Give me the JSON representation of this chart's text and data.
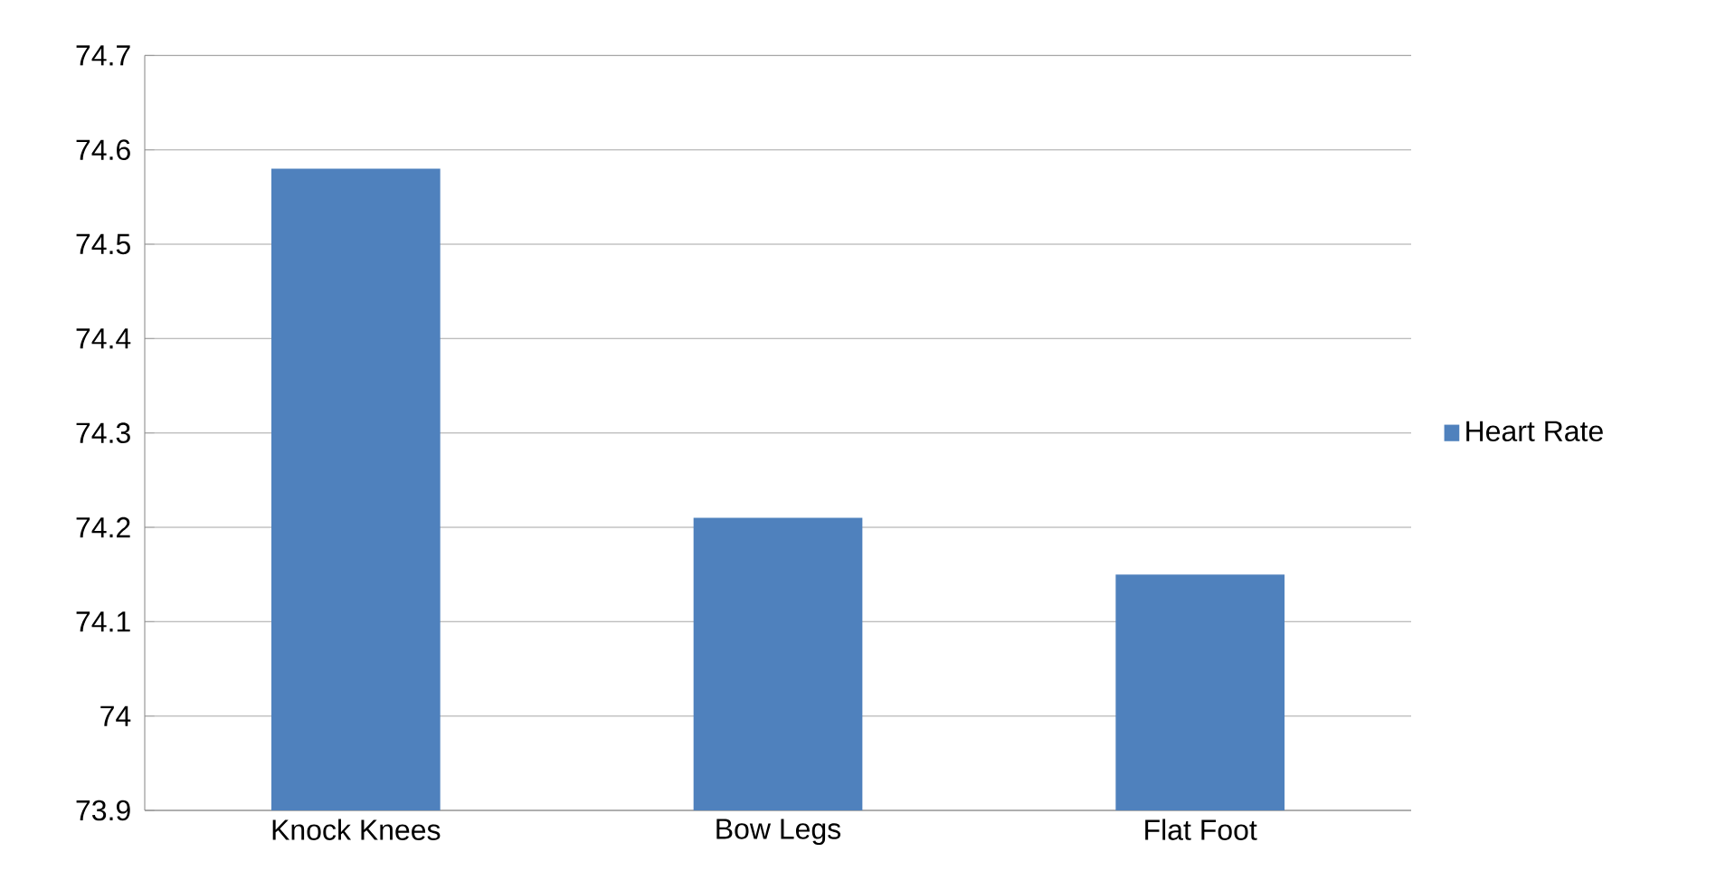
{
  "chart_data": {
    "type": "bar",
    "categories": [
      "Knock Knees",
      "Bow Legs",
      "Flat Foot"
    ],
    "series": [
      {
        "name": "Heart Rate",
        "color": "#4f81bd",
        "values": [
          74.58,
          74.21,
          74.15
        ]
      }
    ],
    "ylim": [
      73.9,
      74.7
    ],
    "yticks": [
      73.9,
      74,
      74.1,
      74.2,
      74.3,
      74.4,
      74.5,
      74.6,
      74.7
    ],
    "grid": "y",
    "legend": "right"
  }
}
